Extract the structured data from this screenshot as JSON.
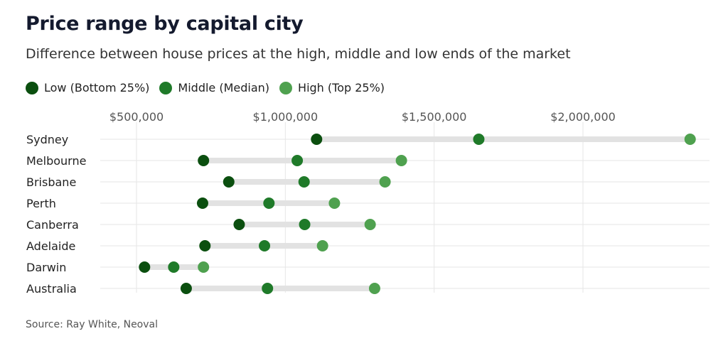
{
  "title": "Price range by capital city",
  "subtitle": "Difference between house prices at the high, middle and low ends of the market",
  "source": "Source: Ray White, Neoval",
  "colors": {
    "low": "#0b4f0f",
    "middle": "#1f7a29",
    "high": "#4fa14f",
    "range": "#e2e2e2",
    "grid": "#e6e6e6"
  },
  "legend": [
    {
      "key": "low",
      "label": "Low (Bottom 25%)"
    },
    {
      "key": "middle",
      "label": "Middle (Median)"
    },
    {
      "key": "high",
      "label": "High (Top 25%)"
    }
  ],
  "chart_data": {
    "type": "dot-range",
    "title": "Price range by capital city",
    "subtitle": "Difference between house prices at the high, middle and low ends of the market",
    "xlim": [
      400000,
      2400000
    ],
    "x_ticks": [
      500000,
      1000000,
      1500000,
      2000000
    ],
    "x_tick_labels": [
      "$500,000",
      "$1,000,000",
      "$1,500,000",
      "$2,000,000"
    ],
    "grid": true,
    "legend_position": "top-left",
    "categories": [
      "Sydney",
      "Melbourne",
      "Brisbane",
      "Perth",
      "Canberra",
      "Adelaide",
      "Darwin",
      "Australia"
    ],
    "series": [
      {
        "name": "Low (Bottom 25%)",
        "key": "low",
        "values": [
          1105000,
          725000,
          810000,
          722000,
          845000,
          730000,
          527000,
          667000
        ]
      },
      {
        "name": "Middle (Median)",
        "key": "middle",
        "values": [
          1650000,
          1040000,
          1063000,
          945000,
          1065000,
          930000,
          625000,
          940000
        ]
      },
      {
        "name": "High (Top 25%)",
        "key": "high",
        "values": [
          2360000,
          1390000,
          1335000,
          1165000,
          1285000,
          1125000,
          725000,
          1300000
        ]
      }
    ]
  }
}
